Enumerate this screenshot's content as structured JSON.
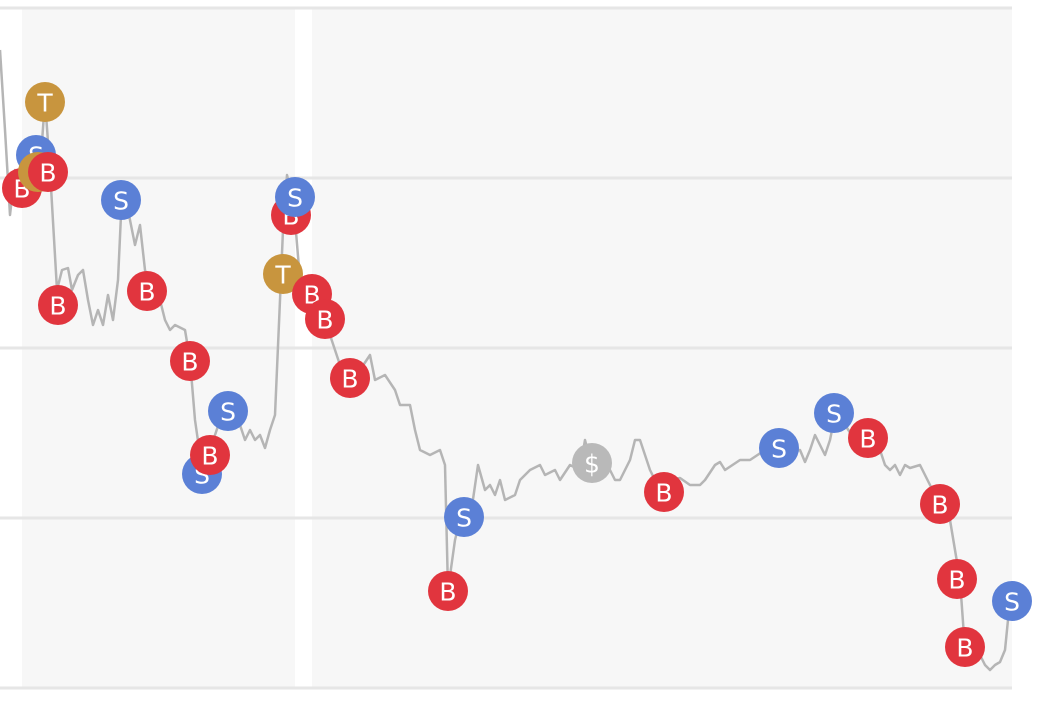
{
  "chart_data": {
    "type": "line",
    "xlim": [
      0,
      1012
    ],
    "ylim": [
      0,
      680
    ],
    "yticks": [
      0,
      170,
      340,
      510,
      680
    ],
    "grid": true,
    "color": "#b5b5b5",
    "x": [
      0,
      5,
      10,
      15,
      22,
      30,
      40,
      45,
      50,
      57,
      62,
      68,
      72,
      78,
      83,
      88,
      93,
      98,
      103,
      108,
      113,
      118,
      121,
      125,
      130,
      135,
      140,
      145,
      150,
      160,
      165,
      170,
      175,
      185,
      190,
      195,
      200,
      205,
      210,
      220,
      230,
      240,
      245,
      250,
      255,
      260,
      265,
      270,
      275,
      280,
      283,
      287,
      292,
      295,
      300,
      305,
      315,
      320,
      330,
      340,
      345,
      350,
      360,
      370,
      375,
      385,
      395,
      400,
      410,
      415,
      420,
      430,
      440,
      445,
      448,
      455,
      460,
      470,
      478,
      485,
      490,
      495,
      500,
      505,
      515,
      520,
      530,
      540,
      545,
      555,
      560,
      570,
      580,
      585,
      590,
      600,
      610,
      615,
      620,
      625,
      630,
      635,
      640,
      650,
      660,
      670,
      680,
      690,
      700,
      705,
      715,
      720,
      725,
      740,
      750,
      765,
      780,
      790,
      800,
      805,
      810,
      815,
      820,
      825,
      830,
      835,
      845,
      855,
      870,
      880,
      885,
      890,
      895,
      900,
      905,
      910,
      920,
      930,
      940,
      950,
      955,
      960,
      965,
      980,
      985,
      990,
      995,
      1000,
      1005,
      1010
    ],
    "values": [
      638,
      558,
      473,
      518,
      498,
      538,
      518,
      588,
      518,
      398,
      418,
      420,
      398,
      413,
      418,
      388,
      363,
      378,
      363,
      393,
      368,
      408,
      473,
      493,
      468,
      443,
      463,
      418,
      403,
      388,
      368,
      358,
      363,
      358,
      328,
      268,
      233,
      228,
      238,
      268,
      278,
      263,
      248,
      258,
      248,
      253,
      240,
      258,
      273,
      388,
      458,
      513,
      493,
      468,
      408,
      388,
      378,
      373,
      353,
      323,
      328,
      318,
      318,
      333,
      308,
      313,
      298,
      283,
      283,
      258,
      238,
      233,
      238,
      223,
      98,
      148,
      168,
      168,
      223,
      198,
      203,
      193,
      208,
      188,
      193,
      208,
      218,
      223,
      213,
      218,
      208,
      223,
      218,
      248,
      228,
      223,
      218,
      208,
      208,
      218,
      228,
      248,
      248,
      218,
      198,
      208,
      210,
      203,
      203,
      208,
      223,
      226,
      218,
      228,
      228,
      238,
      238,
      236,
      238,
      226,
      238,
      253,
      243,
      233,
      248,
      273,
      263,
      248,
      248,
      238,
      223,
      218,
      223,
      213,
      223,
      220,
      223,
      203,
      183,
      168,
      138,
      108,
      38,
      33,
      23,
      18,
      23,
      26,
      38,
      88
    ],
    "markers": [
      {
        "label": "T",
        "x": 45,
        "y": 586,
        "color": "#c8953e"
      },
      {
        "label": "S",
        "x": 36,
        "y": 533,
        "color": "#5b80d6"
      },
      {
        "label": "B",
        "x": 22,
        "y": 500,
        "color": "#e1353e"
      },
      {
        "label": "T",
        "x": 38,
        "y": 516,
        "color": "#c8953e"
      },
      {
        "label": "B",
        "x": 48,
        "y": 516,
        "color": "#e1353e"
      },
      {
        "label": "S",
        "x": 121,
        "y": 488,
        "color": "#5b80d6"
      },
      {
        "label": "B",
        "x": 58,
        "y": 383,
        "color": "#e1353e"
      },
      {
        "label": "B",
        "x": 147,
        "y": 397,
        "color": "#e1353e"
      },
      {
        "label": "B",
        "x": 190,
        "y": 327,
        "color": "#e1353e"
      },
      {
        "label": "S",
        "x": 228,
        "y": 277,
        "color": "#5b80d6"
      },
      {
        "label": "S",
        "x": 202,
        "y": 214,
        "color": "#5b80d6"
      },
      {
        "label": "B",
        "x": 210,
        "y": 233,
        "color": "#e1353e"
      },
      {
        "label": "B",
        "x": 291,
        "y": 473,
        "color": "#e1353e"
      },
      {
        "label": "S",
        "x": 295,
        "y": 491,
        "color": "#5b80d6"
      },
      {
        "label": "T",
        "x": 283,
        "y": 414,
        "color": "#c8953e"
      },
      {
        "label": "B",
        "x": 312,
        "y": 394,
        "color": "#e1353e"
      },
      {
        "label": "B",
        "x": 325,
        "y": 369,
        "color": "#e1353e"
      },
      {
        "label": "B",
        "x": 350,
        "y": 310,
        "color": "#e1353e"
      },
      {
        "label": "S",
        "x": 464,
        "y": 171,
        "color": "#5b80d6"
      },
      {
        "label": "B",
        "x": 448,
        "y": 97,
        "color": "#e1353e"
      },
      {
        "label": "$",
        "x": 592,
        "y": 225,
        "color": "#b9b9b9"
      },
      {
        "label": "B",
        "x": 664,
        "y": 196,
        "color": "#e1353e"
      },
      {
        "label": "S",
        "x": 779,
        "y": 240,
        "color": "#5b80d6"
      },
      {
        "label": "S",
        "x": 834,
        "y": 275,
        "color": "#5b80d6"
      },
      {
        "label": "B",
        "x": 868,
        "y": 250,
        "color": "#e1353e"
      },
      {
        "label": "B",
        "x": 940,
        "y": 184,
        "color": "#e1353e"
      },
      {
        "label": "B",
        "x": 957,
        "y": 109,
        "color": "#e1353e"
      },
      {
        "label": "B",
        "x": 965,
        "y": 41,
        "color": "#e1353e"
      },
      {
        "label": "S",
        "x": 1012,
        "y": 87,
        "color": "#5b80d6"
      }
    ]
  }
}
